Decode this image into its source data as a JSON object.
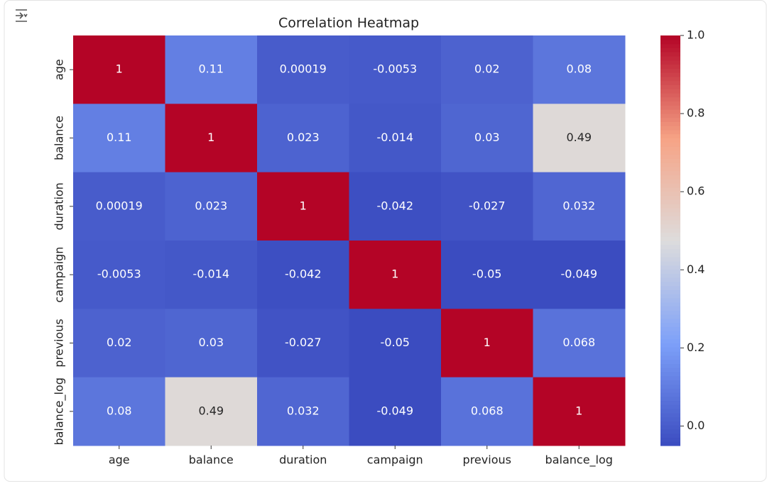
{
  "chart_data": {
    "type": "heatmap",
    "title": "Correlation Heatmap",
    "x": [
      "age",
      "balance",
      "duration",
      "campaign",
      "previous",
      "balance_log"
    ],
    "y": [
      "age",
      "balance",
      "duration",
      "campaign",
      "previous",
      "balance_log"
    ],
    "values": [
      [
        1,
        0.11,
        0.00019,
        -0.0053,
        0.02,
        0.08
      ],
      [
        0.11,
        1,
        0.023,
        -0.014,
        0.03,
        0.49
      ],
      [
        0.00019,
        0.023,
        1,
        -0.042,
        -0.027,
        0.032
      ],
      [
        -0.0053,
        -0.014,
        -0.042,
        1,
        -0.05,
        -0.049
      ],
      [
        0.02,
        0.03,
        -0.027,
        -0.05,
        1,
        0.068
      ],
      [
        0.08,
        0.49,
        0.032,
        -0.049,
        0.068,
        1
      ]
    ],
    "colormap": "coolwarm",
    "clim": [
      -0.05,
      1
    ],
    "cticks": [
      {
        "value": 0,
        "label": "0.0"
      },
      0.2,
      0.4,
      0.6,
      0.8,
      {
        "value": 1,
        "label": "1.0"
      }
    ]
  }
}
